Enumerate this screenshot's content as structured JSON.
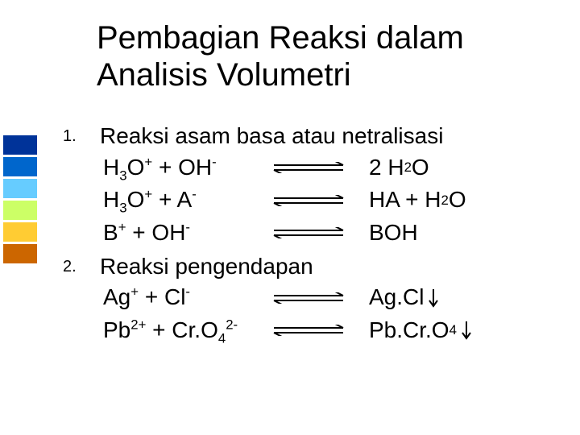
{
  "colorbar": {
    "colors": [
      "#003399",
      "#0066cc",
      "#66ccff",
      "#ccff66",
      "#ffcc33",
      "#cc6600"
    ],
    "block_height": 24,
    "block_gap": 3
  },
  "title": {
    "line1": "Pembagian Reaksi dalam",
    "line2": "Analisis Volumetri",
    "fontsize": 40,
    "color": "#000000"
  },
  "list": {
    "num_fontsize": 20,
    "body_fontsize": 28,
    "arrow": {
      "width": 90,
      "height": 14,
      "stroke": "#000000",
      "stroke_width": 2
    },
    "down_arrow": {
      "width": 12,
      "height": 24,
      "stroke": "#000000",
      "stroke_width": 2
    },
    "items": [
      {
        "num": "1.",
        "heading": "Reaksi asam basa atau netralisasi",
        "reactions": [
          {
            "lhs_html": "H<sub>3</sub>O<sup>+</sup> + OH<sup>-</sup>",
            "rhs_html": "2 H<sub>2</sub>O",
            "precipitate": false
          },
          {
            "lhs_html": "H<sub>3</sub>O<sup>+</sup> + A<sup>-</sup>",
            "rhs_html": "HA + H<sub>2</sub>O",
            "precipitate": false
          },
          {
            "lhs_html": "B<sup>+</sup> + OH<sup>-</sup>",
            "rhs_html": "BOH",
            "precipitate": false
          }
        ]
      },
      {
        "num": "2.",
        "heading": "Reaksi pengendapan",
        "reactions": [
          {
            "lhs_html": "Ag<sup>+</sup> + Cl<sup>-</sup>",
            "rhs_html": "Ag.Cl",
            "precipitate": true
          },
          {
            "lhs_html": "Pb<sup>2+</sup> + Cr.O<sub>4</sub><sup>2-</sup>",
            "rhs_html": "Pb.Cr.O<sub>4</sub>",
            "precipitate": true
          }
        ]
      }
    ]
  }
}
